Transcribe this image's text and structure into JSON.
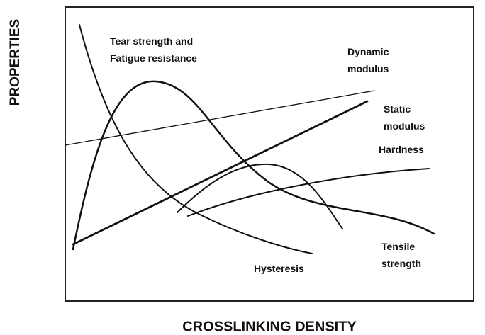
{
  "axes": {
    "y_label": "PROPERTIES",
    "x_label": "CROSSLINKING DENSITY"
  },
  "curves": [
    {
      "label": [
        "Tear strength and",
        "Fatigue resistance"
      ]
    },
    {
      "label": [
        "Dynamic",
        "modulus"
      ]
    },
    {
      "label": [
        "Static",
        "modulus"
      ]
    },
    {
      "label": [
        "Hardness"
      ]
    },
    {
      "label": [
        "Tensile",
        "strength"
      ]
    },
    {
      "label": [
        "Hysteresis"
      ]
    }
  ]
}
